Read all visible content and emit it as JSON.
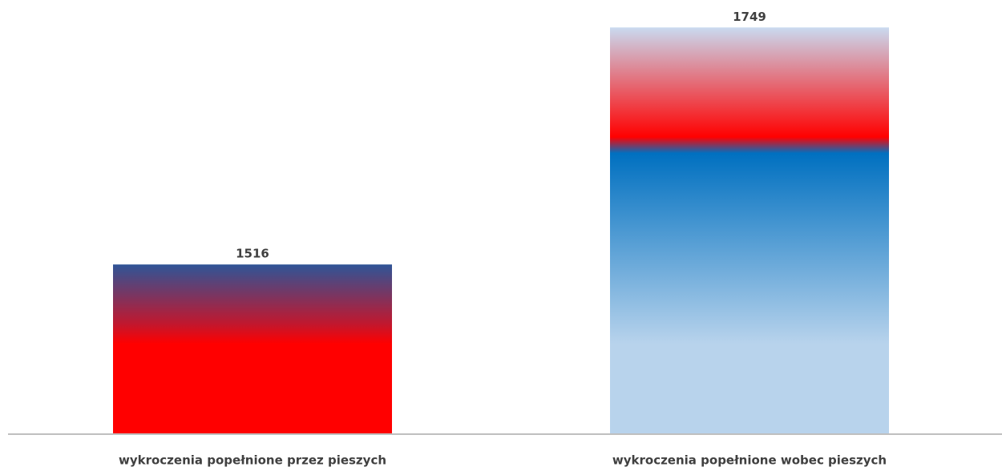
{
  "chart_data": {
    "type": "bar",
    "categories": [
      "wykroczenia popełnione przez pieszych",
      "wykroczenia popełnione wobec pieszych"
    ],
    "values": [
      1516,
      1749
    ],
    "colors": [
      [
        "#2f5597",
        "#c0182f",
        "#ff0000",
        "#ff0000"
      ],
      [
        "#c9daf0",
        "#ff0000",
        "#0070c0",
        "#b8d3ec"
      ]
    ],
    "ylim": [
      1350,
      1750
    ]
  }
}
